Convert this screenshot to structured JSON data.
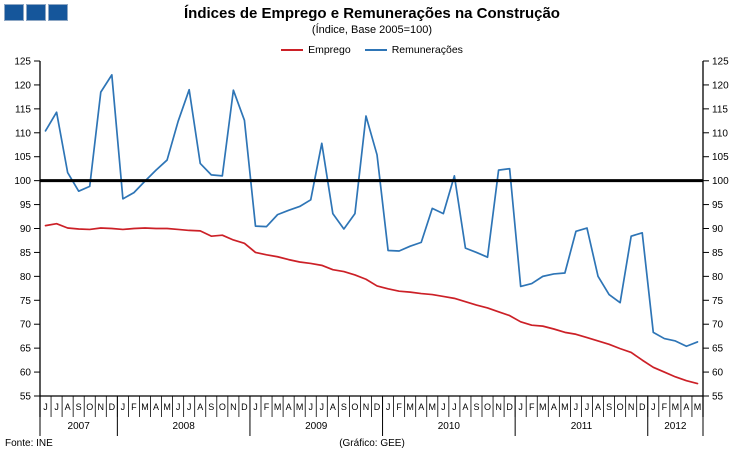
{
  "colors": {
    "logo_blue": "#15569b",
    "emprego_red": "#cc2027",
    "remuneracoes_blue": "#2e75b6",
    "reference_line_black": "#000000",
    "axis_black": "#000000"
  },
  "footer": {
    "source": "Fonte: INE",
    "credit": "(Gráfico:  GEE)"
  },
  "chart_data": {
    "type": "line",
    "title": "Índices de Emprego e Remunerações na Construção",
    "subtitle": "(Índice,  Base 2005=100)",
    "x_unit": "month",
    "x_range": "Jun 2007 - May 2012",
    "ylim": [
      55,
      125
    ],
    "ytick_step": 5,
    "reference_line": 100,
    "grid": false,
    "legend_position": "top-center",
    "axes": "y-left-and-right",
    "x_years": [
      {
        "year": "2007",
        "months": [
          "J",
          "J",
          "A",
          "S",
          "O",
          "N",
          "D"
        ]
      },
      {
        "year": "2008",
        "months": [
          "J",
          "F",
          "M",
          "A",
          "M",
          "J",
          "J",
          "A",
          "S",
          "O",
          "N",
          "D"
        ]
      },
      {
        "year": "2009",
        "months": [
          "J",
          "F",
          "M",
          "A",
          "M",
          "J",
          "J",
          "A",
          "S",
          "O",
          "N",
          "D"
        ]
      },
      {
        "year": "2010",
        "months": [
          "J",
          "F",
          "M",
          "A",
          "M",
          "J",
          "J",
          "A",
          "S",
          "O",
          "N",
          "D"
        ]
      },
      {
        "year": "2011",
        "months": [
          "J",
          "F",
          "M",
          "A",
          "M",
          "J",
          "J",
          "A",
          "S",
          "O",
          "N",
          "D"
        ]
      },
      {
        "year": "2012",
        "months": [
          "J",
          "F",
          "M",
          "A",
          "M"
        ]
      }
    ],
    "series": [
      {
        "name": "Emprego",
        "color": "#cc2027",
        "values": [
          90.6,
          91.0,
          90.1,
          89.9,
          89.8,
          90.1,
          90.0,
          89.8,
          90.0,
          90.1,
          90.0,
          90.0,
          89.8,
          89.6,
          89.5,
          88.4,
          88.6,
          87.6,
          86.9,
          85.0,
          84.5,
          84.1,
          83.5,
          83.0,
          82.7,
          82.3,
          81.4,
          81.0,
          80.3,
          79.4,
          78.0,
          77.4,
          76.9,
          76.7,
          76.4,
          76.2,
          75.8,
          75.4,
          74.7,
          74.0,
          73.4,
          72.6,
          71.8,
          70.5,
          69.8,
          69.6,
          69.0,
          68.3,
          67.9,
          67.2,
          66.5,
          65.8,
          64.9,
          64.1,
          62.5,
          61.0,
          60.0,
          59.0,
          58.2,
          57.6
        ]
      },
      {
        "name": "Remunerações",
        "color": "#2e75b6",
        "values": [
          110.4,
          114.3,
          101.7,
          97.8,
          98.8,
          118.5,
          122.1,
          96.2,
          97.5,
          99.9,
          102.2,
          104.3,
          112.4,
          119.0,
          103.6,
          101.2,
          101.0,
          118.9,
          112.6,
          90.5,
          90.4,
          92.9,
          93.8,
          94.6,
          96.0,
          107.8,
          93.1,
          89.9,
          93.1,
          113.5,
          105.4,
          85.4,
          85.3,
          86.3,
          87.1,
          94.2,
          93.1,
          101.0,
          85.9,
          85.0,
          84.0,
          102.2,
          102.5,
          77.9,
          78.5,
          80.0,
          80.5,
          80.7,
          89.4,
          90.1,
          80.0,
          76.2,
          74.5,
          88.4,
          89.1,
          68.3,
          67.0,
          66.5,
          65.4,
          66.3
        ]
      }
    ]
  }
}
